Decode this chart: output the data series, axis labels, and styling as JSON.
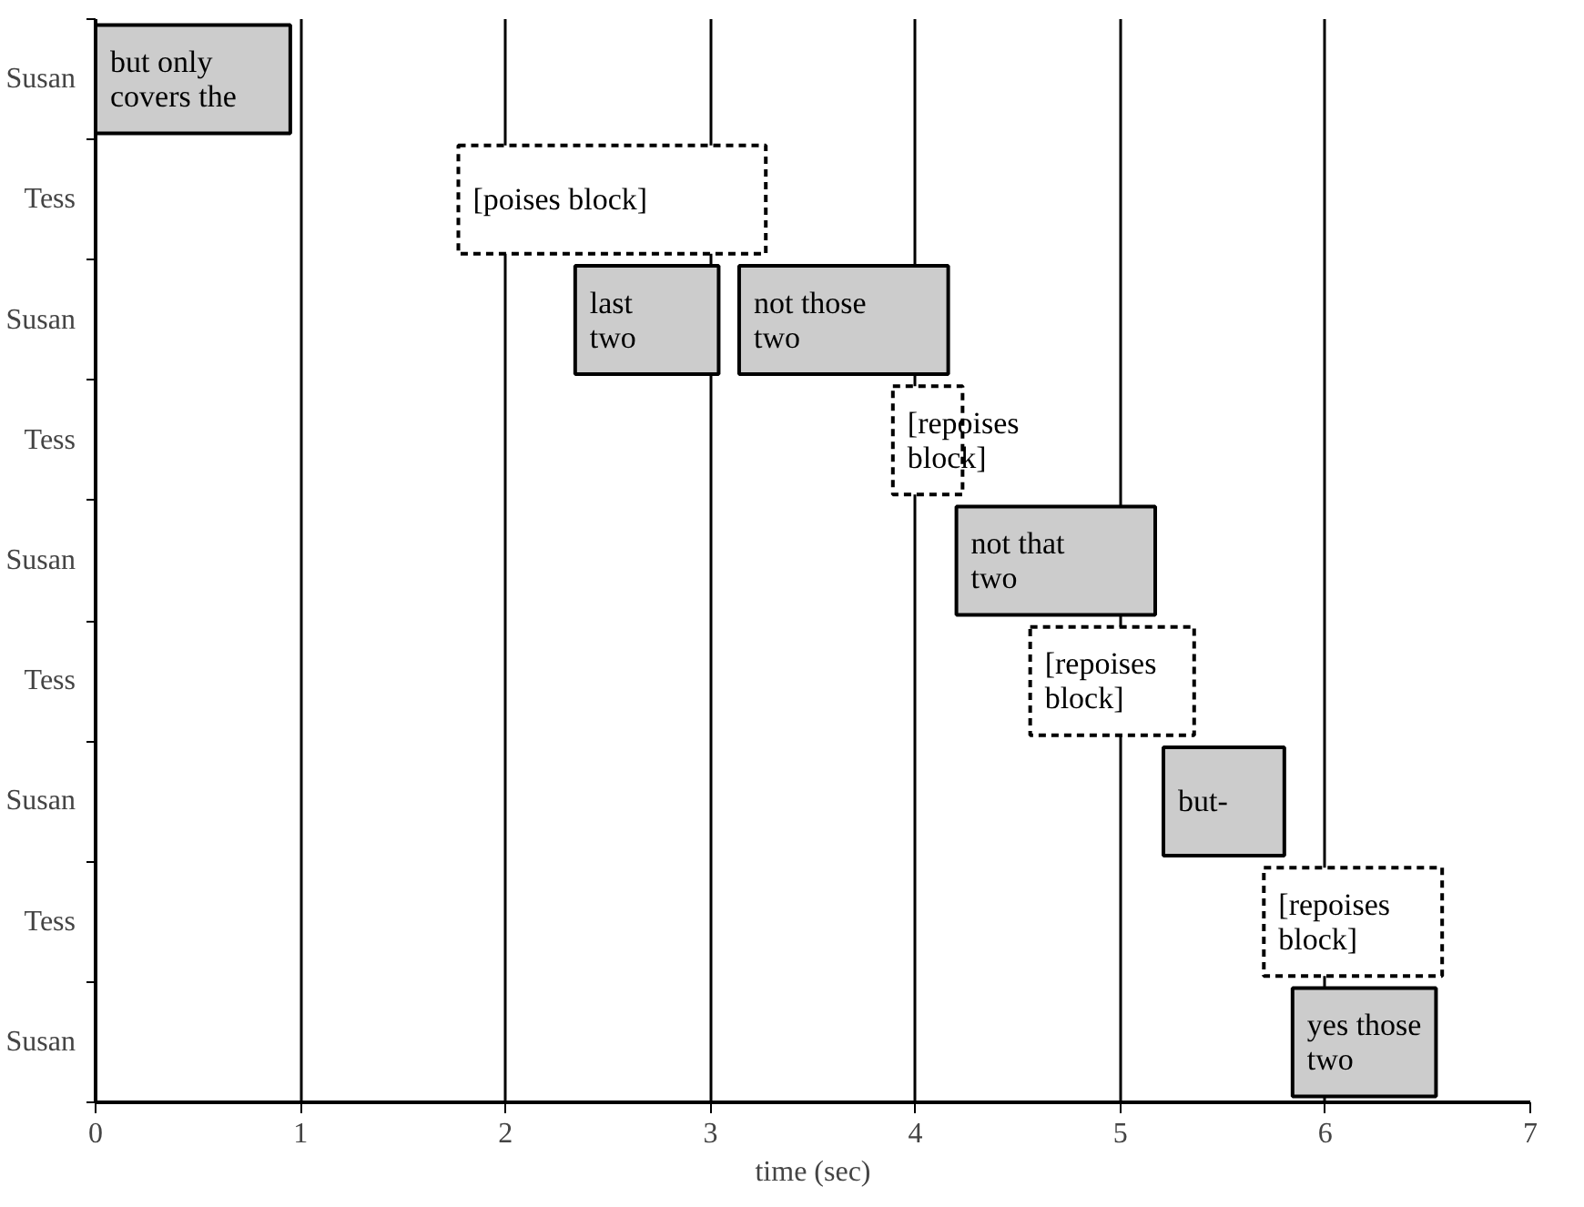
{
  "chart_data": {
    "type": "bar",
    "orientation": "horizontal",
    "xlabel": "time (sec)",
    "categories": [
      "Susan",
      "Tess",
      "Susan",
      "Tess",
      "Susan",
      "Tess",
      "Susan",
      "Tess",
      "Susan"
    ],
    "xlim": [
      0,
      7
    ],
    "xticks": [
      0,
      1,
      2,
      3,
      4,
      5,
      6,
      7
    ],
    "grid": "x",
    "series": [
      {
        "color": "#cccccc",
        "line_style": "solid",
        "base": [
          0,
          null,
          2.34,
          null,
          4.2,
          null,
          5.21,
          null,
          5.84
        ],
        "values": [
          0.95,
          null,
          0.7,
          null,
          0.97,
          null,
          0.59,
          null,
          0.7
        ],
        "value_labels": [
          "but only\ncovers the",
          null,
          "last\ntwo",
          null,
          "not that\ntwo",
          null,
          "but-",
          null,
          "yes those\ntwo"
        ]
      },
      {
        "color": "#cccccc",
        "line_style": "solid",
        "base": [
          null,
          null,
          3.14,
          null,
          null,
          null,
          null,
          null,
          null
        ],
        "values": [
          null,
          null,
          1.02,
          null,
          null,
          null,
          null,
          null,
          null
        ],
        "value_labels": [
          null,
          null,
          "not those\ntwo",
          null,
          null,
          null,
          null,
          null,
          null
        ]
      },
      {
        "color": "#ffffff",
        "line_style": "dashed",
        "base": [
          null,
          1.77,
          null,
          3.89,
          null,
          4.56,
          null,
          5.7,
          null
        ],
        "values": [
          null,
          1.5,
          null,
          0.34,
          null,
          0.8,
          null,
          0.87,
          null
        ],
        "value_labels": [
          null,
          "[poises block]",
          null,
          "[repoises\nblock]",
          null,
          "[repoises\nblock]",
          null,
          "[repoises\nblock]",
          null
        ]
      }
    ]
  }
}
